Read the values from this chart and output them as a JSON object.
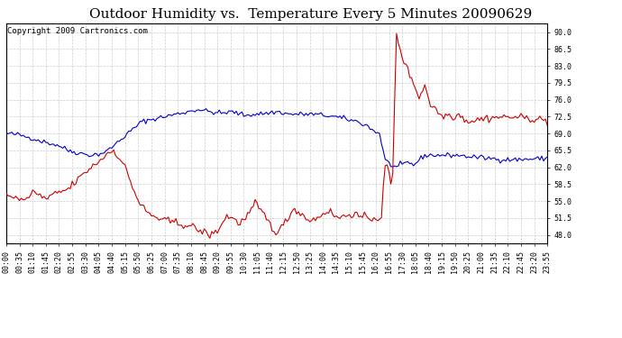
{
  "title": "Outdoor Humidity vs.  Temperature Every 5 Minutes 20090629",
  "copyright_text": "Copyright 2009 Cartronics.com",
  "ylabel_right_ticks": [
    48.0,
    51.5,
    55.0,
    58.5,
    62.0,
    65.5,
    69.0,
    72.5,
    76.0,
    79.5,
    83.0,
    86.5,
    90.0
  ],
  "ymin": 46.25,
  "ymax": 91.75,
  "bg_color": "#ffffff",
  "grid_color": "#cccccc",
  "grid_style": "--",
  "blue_color": "#0000cc",
  "red_color": "#cc0000",
  "title_fontsize": 11,
  "copyright_fontsize": 6.5,
  "tick_fontsize": 6,
  "n_points": 288,
  "x_tick_every": 7,
  "blue_kp_x": [
    0,
    6,
    9,
    14,
    18,
    23,
    28,
    33,
    38,
    45,
    50,
    54,
    57,
    60,
    63,
    66,
    69,
    72,
    78,
    84,
    90,
    96,
    102,
    108,
    114,
    120,
    126,
    132,
    138,
    144,
    150,
    156,
    162,
    168,
    174,
    180,
    186,
    192,
    195,
    198,
    201,
    204,
    207,
    210,
    213,
    216,
    219,
    222,
    225,
    228,
    231,
    234,
    237,
    240,
    243,
    246,
    249,
    252,
    255,
    258,
    261,
    264,
    267,
    270,
    273,
    276,
    279,
    282,
    285,
    287
  ],
  "blue_kp_y": [
    69.0,
    68.8,
    68.5,
    68.0,
    67.5,
    67.0,
    66.5,
    65.5,
    65.0,
    64.5,
    64.8,
    65.5,
    66.5,
    67.5,
    68.5,
    69.5,
    70.5,
    71.5,
    72.0,
    72.5,
    73.0,
    73.5,
    74.0,
    73.5,
    73.2,
    73.5,
    72.8,
    73.0,
    73.2,
    73.5,
    73.0,
    73.0,
    73.0,
    72.8,
    72.5,
    72.0,
    71.5,
    70.5,
    69.5,
    69.0,
    63.5,
    62.5,
    62.0,
    62.5,
    63.0,
    62.5,
    63.5,
    64.5,
    64.5,
    64.5,
    64.5,
    64.5,
    64.5,
    64.5,
    64.3,
    64.2,
    64.1,
    64.0,
    63.9,
    63.8,
    63.7,
    63.6,
    63.6,
    63.6,
    63.6,
    63.7,
    63.7,
    63.8,
    63.8,
    64.0
  ],
  "red_kp_x": [
    0,
    6,
    10,
    14,
    18,
    22,
    26,
    33,
    38,
    45,
    50,
    54,
    57,
    60,
    63,
    66,
    70,
    75,
    80,
    84,
    90,
    96,
    100,
    102,
    105,
    108,
    111,
    114,
    117,
    120,
    123,
    126,
    129,
    132,
    135,
    138,
    141,
    144,
    147,
    150,
    153,
    156,
    159,
    162,
    165,
    168,
    171,
    174,
    177,
    180,
    183,
    186,
    189,
    192,
    195,
    198,
    199,
    200,
    201,
    202,
    204,
    205,
    207,
    210,
    213,
    216,
    219,
    222,
    225,
    228,
    231,
    234,
    237,
    240,
    243,
    246,
    249,
    252,
    255,
    258,
    261,
    264,
    267,
    270,
    273,
    276,
    279,
    282,
    285,
    287
  ],
  "red_kp_y": [
    56.5,
    55.5,
    55.0,
    57.0,
    56.0,
    55.5,
    56.5,
    57.5,
    59.5,
    62.0,
    63.5,
    65.0,
    65.5,
    64.0,
    62.0,
    59.0,
    55.0,
    52.5,
    51.5,
    51.0,
    50.5,
    50.0,
    49.5,
    49.0,
    48.5,
    48.0,
    48.5,
    50.0,
    52.0,
    51.5,
    50.5,
    51.0,
    52.5,
    54.5,
    53.0,
    51.5,
    49.5,
    48.5,
    50.0,
    52.0,
    53.5,
    52.5,
    51.5,
    51.0,
    51.5,
    52.5,
    53.0,
    52.0,
    51.5,
    52.0,
    52.5,
    52.0,
    51.5,
    51.5,
    51.5,
    51.5,
    52.0,
    57.5,
    62.0,
    62.5,
    58.5,
    61.0,
    89.5,
    85.0,
    82.0,
    79.5,
    76.5,
    79.0,
    75.0,
    74.0,
    72.5,
    73.0,
    72.5,
    73.0,
    72.0,
    71.5,
    71.8,
    72.0,
    72.2,
    72.3,
    72.4,
    72.4,
    72.4,
    72.4,
    72.3,
    72.2,
    72.1,
    72.0,
    71.8,
    71.5
  ]
}
